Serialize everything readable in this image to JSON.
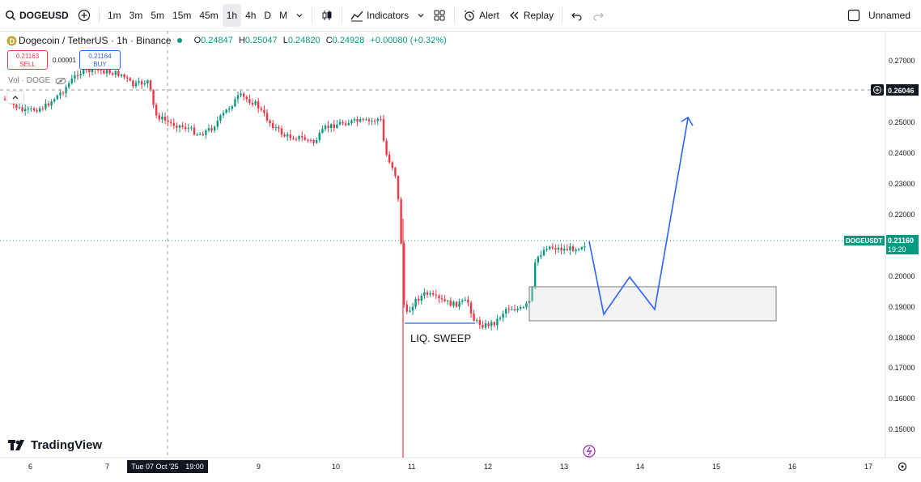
{
  "toolbar": {
    "symbol": "DOGEUSD",
    "intervals": [
      "1m",
      "3m",
      "5m",
      "15m",
      "45m",
      "1h",
      "4h",
      "D",
      "M"
    ],
    "active_interval": "1h",
    "indicators_label": "Indicators",
    "alert_label": "Alert",
    "replay_label": "Replay",
    "layout_name": "Unnamed"
  },
  "legend": {
    "title": "Dogecoin / TetherUS · 1h · Binance",
    "o_label": "O",
    "o": "0.24847",
    "h_label": "H",
    "h": "0.25047",
    "l_label": "L",
    "l": "0.24820",
    "c_label": "C",
    "c": "0.24928",
    "change": "+0.00080 (+0.32%)"
  },
  "trade": {
    "sell_price": "0.21163",
    "sell_label": "SELL",
    "spread": "0.00001",
    "buy_price": "0.21164",
    "buy_label": "BUY"
  },
  "volume_label": "Vol · DOGE",
  "price_axis": {
    "ticks": [
      "0.27000",
      "0.25000",
      "0.24000",
      "0.23000",
      "0.22000",
      "0.20000",
      "0.19000",
      "0.18000",
      "0.17000",
      "0.16000",
      "0.15000"
    ],
    "crosshair_price": "0.26046",
    "symbol_tag": "DOGEUSDT",
    "last_price": "0.21160",
    "countdown": "19:20"
  },
  "time_axis": {
    "labels": [
      "6",
      "7",
      "9",
      "10",
      "11",
      "12",
      "13",
      "14",
      "15",
      "16",
      "17"
    ],
    "crosshair_date": "Tue 07 Oct '25",
    "crosshair_time": "19:00"
  },
  "annotation": {
    "label": "LIQ. SWEEP"
  },
  "watermark": "TradingView",
  "colors": {
    "up": "#089981",
    "down": "#f23645",
    "drawing": "#2962ff",
    "accent": "#2962ff"
  }
}
